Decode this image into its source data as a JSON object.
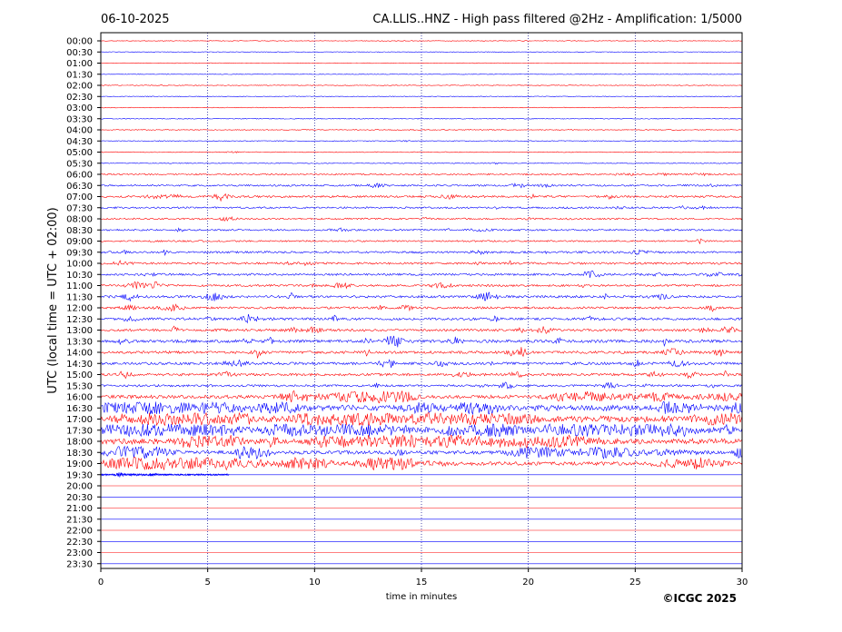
{
  "header": {
    "date": "06-10-2025",
    "title": "CA.LLIS..HNZ - High pass filtered @2Hz - Amplification: 1/5000"
  },
  "footer": {
    "copyright": "©ICGC 2025"
  },
  "colors": {
    "even_trace": "#ff0000",
    "odd_trace": "#0000ff",
    "grid": "#00008b",
    "frame": "#000000"
  },
  "chart_data": {
    "type": "line",
    "subtype": "helicorder",
    "title": "CA.LLIS..HNZ - High pass filtered @2Hz - Amplification: 1/5000",
    "xlabel": "time in minutes",
    "ylabel": "UTC (local time = UTC + 02:00)",
    "xlim": [
      0,
      30
    ],
    "x_ticks": [
      "0",
      "5",
      "10",
      "15",
      "20",
      "25",
      "30"
    ],
    "x_gridlines": [
      5,
      10,
      15,
      20,
      25
    ],
    "grid": true,
    "rows": [
      "00:00",
      "00:30",
      "01:00",
      "01:30",
      "02:00",
      "02:30",
      "03:00",
      "03:30",
      "04:00",
      "04:30",
      "05:00",
      "05:30",
      "06:00",
      "06:30",
      "07:00",
      "07:30",
      "08:00",
      "08:30",
      "09:00",
      "09:30",
      "10:00",
      "10:30",
      "11:00",
      "11:30",
      "12:00",
      "12:30",
      "13:00",
      "13:30",
      "14:00",
      "14:30",
      "15:00",
      "15:30",
      "16:00",
      "16:30",
      "17:00",
      "17:30",
      "18:00",
      "18:30",
      "19:00",
      "19:30",
      "20:00",
      "20:30",
      "21:00",
      "21:30",
      "22:00",
      "22:30",
      "23:00",
      "23:30"
    ],
    "row_colors": "alternating red (even rows) / blue (odd rows)",
    "activity_level": [
      0.2,
      0.2,
      0.2,
      0.2,
      0.3,
      0.3,
      0.3,
      0.4,
      0.4,
      0.4,
      0.4,
      0.5,
      1.2,
      1.5,
      2.0,
      1.6,
      1.4,
      1.5,
      1.3,
      1.8,
      1.9,
      2.0,
      2.0,
      2.3,
      2.0,
      2.4,
      2.4,
      3.0,
      2.6,
      2.6,
      2.5,
      2.0,
      3.5,
      4.5,
      5.0,
      5.0,
      4.2,
      3.6,
      3.8,
      1.2,
      0.1,
      0.1,
      0.1,
      0.1,
      0.1,
      0.1,
      0.1,
      0.1
    ],
    "data_end_row": "19:30",
    "data_end_minute": 6
  }
}
